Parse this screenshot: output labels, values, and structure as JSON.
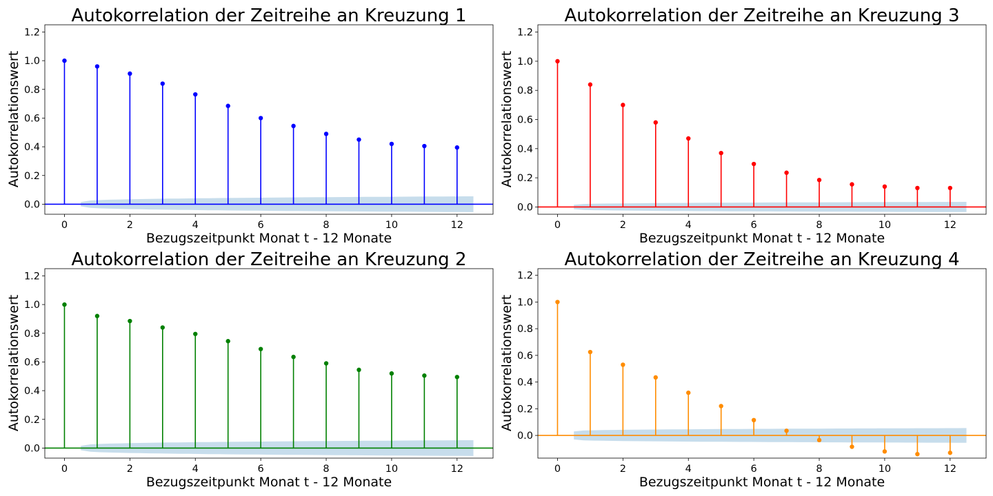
{
  "chart_data": [
    {
      "type": "stem",
      "title": "Autokorrelation der Zeitreihe an Kreuzung 1",
      "xlabel": "Bezugszeitpunkt Monat t - 12 Monate",
      "ylabel": "Autokorrelationswert",
      "color": "#0000ff",
      "xlim": [
        -0.6,
        13.1
      ],
      "ylim": [
        -0.07,
        1.25
      ],
      "xticks": [
        0,
        2,
        4,
        6,
        8,
        10,
        12
      ],
      "yticks": [
        0.0,
        0.2,
        0.4,
        0.6,
        0.8,
        1.0,
        1.2
      ],
      "x": [
        0,
        1,
        2,
        3,
        4,
        5,
        6,
        7,
        8,
        9,
        10,
        11,
        12
      ],
      "values": [
        1.0,
        0.96,
        0.91,
        0.84,
        0.765,
        0.685,
        0.6,
        0.545,
        0.49,
        0.45,
        0.42,
        0.405,
        0.395
      ],
      "confidence_band": {
        "x": [
          0.5,
          12.5
        ],
        "half_width": [
          0.015,
          0.055
        ]
      }
    },
    {
      "type": "stem",
      "title": "Autokorrelation der Zeitreihe an Kreuzung 3",
      "xlabel": "Bezugszeitpunkt Monat t - 12 Monate",
      "ylabel": "Autokorrelationswert",
      "color": "#ff0000",
      "xlim": [
        -0.6,
        13.1
      ],
      "ylim": [
        -0.05,
        1.25
      ],
      "xticks": [
        0,
        2,
        4,
        6,
        8,
        10,
        12
      ],
      "yticks": [
        0.0,
        0.2,
        0.4,
        0.6,
        0.8,
        1.0,
        1.2
      ],
      "x": [
        0,
        1,
        2,
        3,
        4,
        5,
        6,
        7,
        8,
        9,
        10,
        11,
        12
      ],
      "values": [
        1.0,
        0.84,
        0.7,
        0.58,
        0.47,
        0.37,
        0.295,
        0.235,
        0.185,
        0.155,
        0.14,
        0.13,
        0.13
      ],
      "confidence_band": {
        "x": [
          0.5,
          12.5
        ],
        "half_width": [
          0.015,
          0.035
        ]
      }
    },
    {
      "type": "stem",
      "title": "Autokorrelation der Zeitreihe an Kreuzung 2",
      "xlabel": "Bezugszeitpunkt Monat t - 12 Monate",
      "ylabel": "Autokorrelationswert",
      "color": "#008000",
      "xlim": [
        -0.6,
        13.1
      ],
      "ylim": [
        -0.07,
        1.25
      ],
      "xticks": [
        0,
        2,
        4,
        6,
        8,
        10,
        12
      ],
      "yticks": [
        0.0,
        0.2,
        0.4,
        0.6,
        0.8,
        1.0,
        1.2
      ],
      "x": [
        0,
        1,
        2,
        3,
        4,
        5,
        6,
        7,
        8,
        9,
        10,
        11,
        12
      ],
      "values": [
        1.0,
        0.92,
        0.885,
        0.84,
        0.795,
        0.745,
        0.69,
        0.635,
        0.59,
        0.545,
        0.52,
        0.505,
        0.495
      ],
      "confidence_band": {
        "x": [
          0.5,
          12.5
        ],
        "half_width": [
          0.015,
          0.055
        ]
      }
    },
    {
      "type": "stem",
      "title": "Autokorrelation der Zeitreihe an Kreuzung 4",
      "xlabel": "Bezugszeitpunkt Monat t - 12 Monate",
      "ylabel": "Autokorrelationswert",
      "color": "#ff8c00",
      "xlim": [
        -0.6,
        13.1
      ],
      "ylim": [
        -0.17,
        1.25
      ],
      "xticks": [
        0,
        2,
        4,
        6,
        8,
        10,
        12
      ],
      "yticks": [
        0.0,
        0.2,
        0.4,
        0.6,
        0.8,
        1.0,
        1.2
      ],
      "x": [
        0,
        1,
        2,
        3,
        4,
        5,
        6,
        7,
        8,
        9,
        10,
        11,
        12
      ],
      "values": [
        1.0,
        0.625,
        0.53,
        0.435,
        0.32,
        0.22,
        0.115,
        0.035,
        -0.035,
        -0.085,
        -0.12,
        -0.14,
        -0.13
      ],
      "confidence_band": {
        "x": [
          0.5,
          12.5
        ],
        "half_width": [
          0.03,
          0.055
        ]
      }
    }
  ]
}
